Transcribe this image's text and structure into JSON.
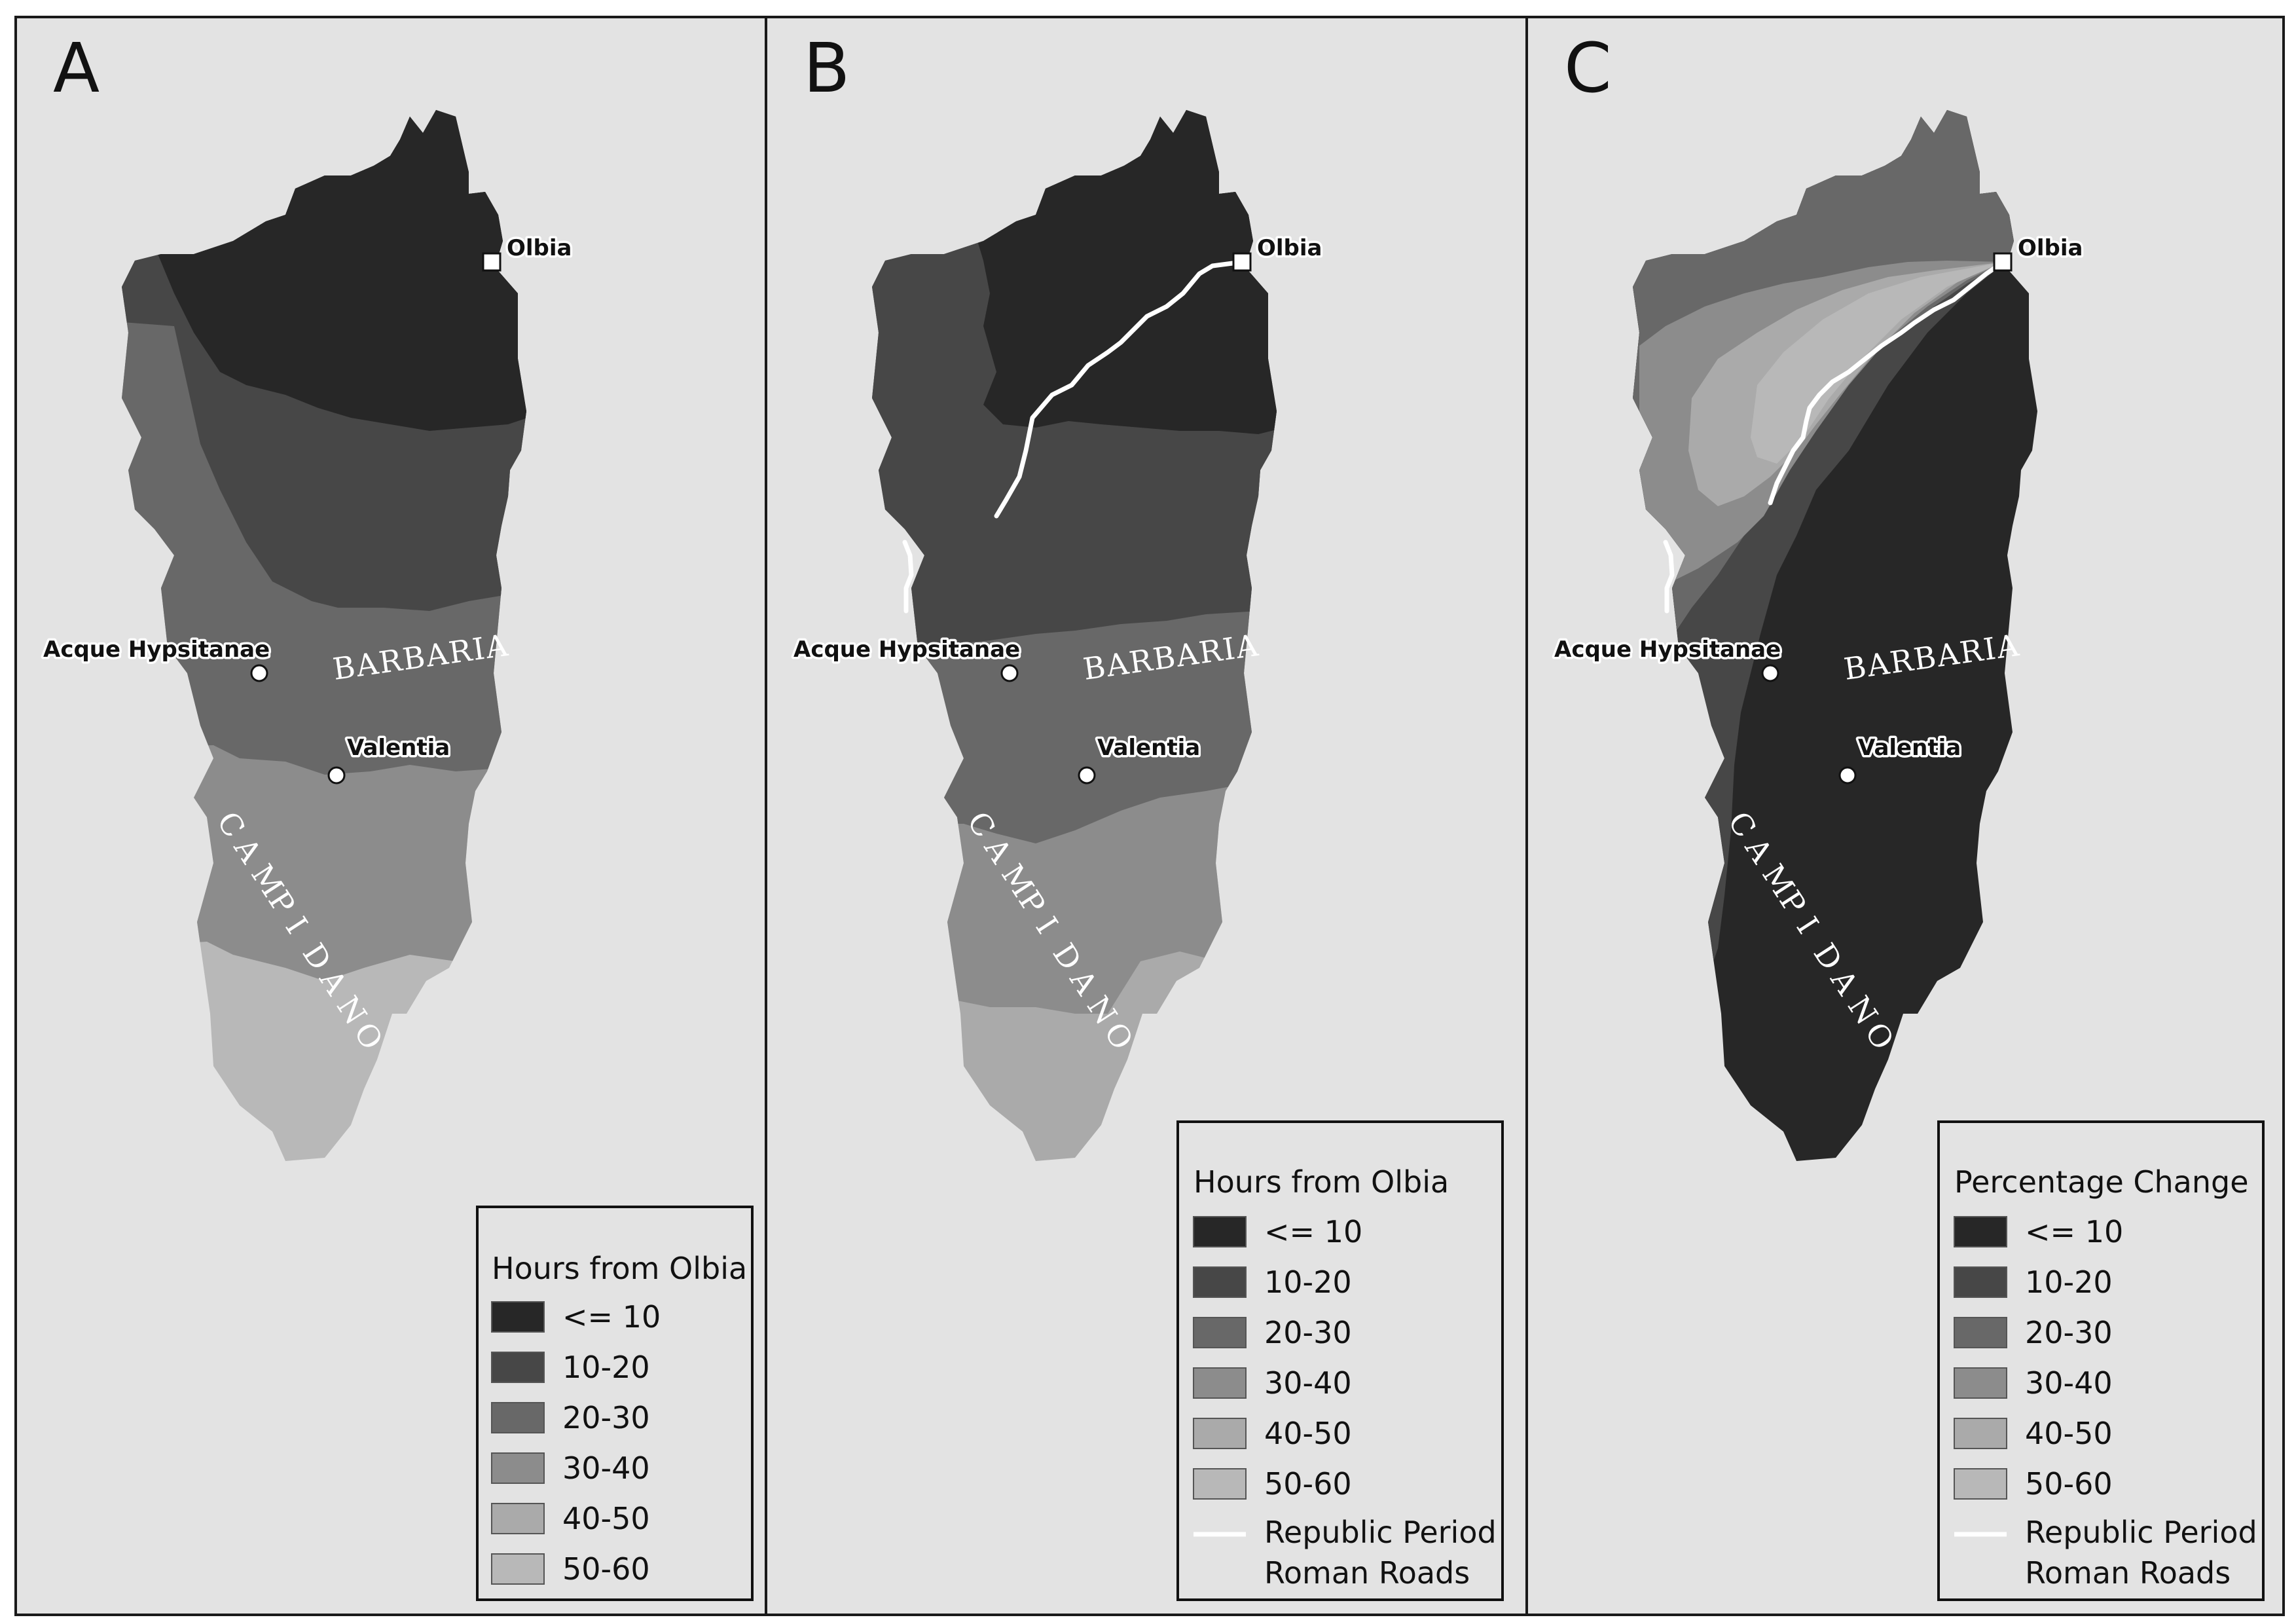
{
  "panels": [
    {
      "letter": "A",
      "legend": {
        "title": "Hours from Olbia",
        "classes": [
          "<= 10",
          "10-20",
          "20-30",
          "30-40",
          "40-50",
          "50-60"
        ],
        "road_label_line1": "",
        "road_label_line2": ""
      }
    },
    {
      "letter": "B",
      "legend": {
        "title": "Hours from Olbia",
        "classes": [
          "<= 10",
          "10-20",
          "20-30",
          "30-40",
          "40-50",
          "50-60"
        ],
        "road_label_line1": "Republic Period",
        "road_label_line2": "Roman Roads"
      }
    },
    {
      "letter": "C",
      "legend": {
        "title": "Percentage Change",
        "classes": [
          "<= 10",
          "10-20",
          "20-30",
          "30-40",
          "40-50",
          "50-60"
        ],
        "road_label_line1": "Republic Period",
        "road_label_line2": "Roman Roads"
      }
    }
  ],
  "places": {
    "olbia": "Olbia",
    "acque": "Acque Hypsitanae",
    "valentia": "Valentia"
  },
  "regions": {
    "barbaria": "BARBARIA",
    "campidano_letters": [
      "C",
      "A",
      "M",
      "P",
      "I",
      "D",
      "A",
      "N",
      "O"
    ]
  },
  "class_colors": [
    "#272727",
    "#474747",
    "#686868",
    "#8c8c8c",
    "#aaaaaa",
    "#b8b8b8"
  ],
  "road_color": "#ffffff"
}
